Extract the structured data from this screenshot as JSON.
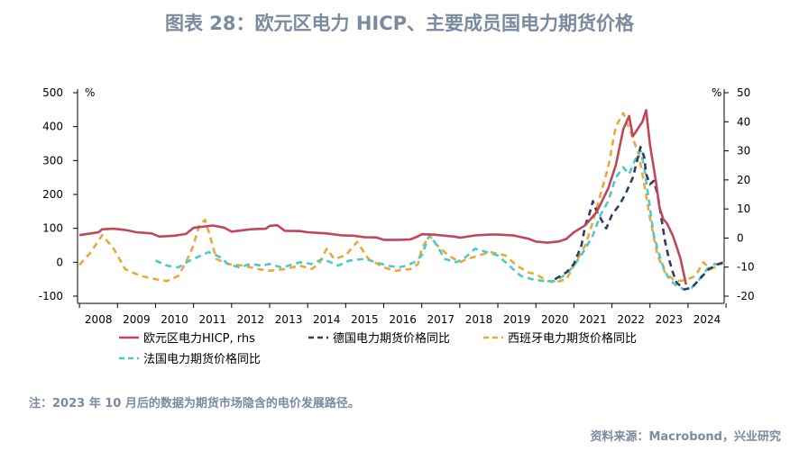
{
  "title": "图表 28：欧元区电力 HICP、主要成员国电力期货价格",
  "note": "注：2023 年 10 月后的数据为期货市场隐含的电价发展路径。",
  "source": "资料来源：Macrobond，兴业研究",
  "chart_data": {
    "type": "line",
    "x_tick_labels": [
      "2008",
      "2009",
      "2010",
      "2011",
      "2012",
      "2013",
      "2014",
      "2015",
      "2016",
      "2017",
      "2018",
      "2019",
      "2020",
      "2021",
      "2022",
      "2023",
      "2024"
    ],
    "xlim": [
      2007.95,
      2024.95
    ],
    "left_axis": {
      "unit": "%",
      "ticks": [
        500,
        400,
        300,
        200,
        100,
        0,
        -100
      ],
      "ylim": [
        -100,
        500
      ]
    },
    "right_axis": {
      "unit": "%",
      "ticks": [
        50,
        40,
        30,
        20,
        10,
        0,
        -10,
        -20
      ],
      "ylim": [
        -20,
        50
      ]
    },
    "series": [
      {
        "name": "欧元区电力HICP, rhs",
        "axis": "right",
        "color": "#c0475a",
        "style": "solid",
        "points": [
          [
            2008.0,
            1.0
          ],
          [
            2008.3,
            1.6
          ],
          [
            2008.5,
            2.0
          ],
          [
            2008.6,
            3.0
          ],
          [
            2008.9,
            3.2
          ],
          [
            2009.2,
            2.8
          ],
          [
            2009.5,
            2.0
          ],
          [
            2009.9,
            1.6
          ],
          [
            2010.1,
            0.5
          ],
          [
            2010.5,
            0.8
          ],
          [
            2010.8,
            1.4
          ],
          [
            2011.0,
            3.5
          ],
          [
            2011.3,
            4.0
          ],
          [
            2011.5,
            4.3
          ],
          [
            2011.8,
            3.6
          ],
          [
            2012.0,
            2.2
          ],
          [
            2012.5,
            3.0
          ],
          [
            2012.9,
            3.2
          ],
          [
            2013.0,
            4.2
          ],
          [
            2013.2,
            4.4
          ],
          [
            2013.4,
            2.5
          ],
          [
            2013.8,
            2.4
          ],
          [
            2014.0,
            2.0
          ],
          [
            2014.5,
            1.6
          ],
          [
            2014.9,
            0.9
          ],
          [
            2015.2,
            0.8
          ],
          [
            2015.5,
            0.3
          ],
          [
            2015.8,
            0.2
          ],
          [
            2016.0,
            -0.6
          ],
          [
            2016.4,
            -0.6
          ],
          [
            2016.7,
            -0.5
          ],
          [
            2016.9,
            0.6
          ],
          [
            2017.0,
            1.3
          ],
          [
            2017.3,
            1.2
          ],
          [
            2017.6,
            0.8
          ],
          [
            2017.9,
            0.4
          ],
          [
            2018.0,
            0.1
          ],
          [
            2018.4,
            0.9
          ],
          [
            2018.8,
            1.2
          ],
          [
            2019.0,
            1.2
          ],
          [
            2019.4,
            0.9
          ],
          [
            2019.8,
            -0.2
          ],
          [
            2020.0,
            -1.2
          ],
          [
            2020.3,
            -1.6
          ],
          [
            2020.6,
            -1.2
          ],
          [
            2020.8,
            -0.3
          ],
          [
            2021.0,
            2.0
          ],
          [
            2021.3,
            4.4
          ],
          [
            2021.6,
            9.0
          ],
          [
            2021.9,
            17.0
          ],
          [
            2022.1,
            25.0
          ],
          [
            2022.3,
            37.5
          ],
          [
            2022.45,
            42.0
          ],
          [
            2022.55,
            35.0
          ],
          [
            2022.7,
            38.0
          ],
          [
            2022.8,
            40.0
          ],
          [
            2022.9,
            44.0
          ],
          [
            2023.0,
            32.0
          ],
          [
            2023.15,
            20.0
          ],
          [
            2023.25,
            10.5
          ],
          [
            2023.35,
            6.5
          ],
          [
            2023.45,
            5.0
          ],
          [
            2023.6,
            0.8
          ],
          [
            2023.7,
            -3.0
          ],
          [
            2023.8,
            -7.0
          ],
          [
            2023.9,
            -13.0
          ],
          [
            2023.95,
            -16.0
          ]
        ]
      },
      {
        "name": "德国电力期货价格同比",
        "axis": "left",
        "color": "#2e3f5c",
        "style": "dash",
        "points": [
          [
            2020.5,
            -50
          ],
          [
            2020.8,
            -30
          ],
          [
            2021.0,
            -5
          ],
          [
            2021.2,
            50
          ],
          [
            2021.3,
            110
          ],
          [
            2021.4,
            140
          ],
          [
            2021.5,
            180
          ],
          [
            2021.6,
            150
          ],
          [
            2021.75,
            120
          ],
          [
            2021.85,
            100
          ],
          [
            2022.0,
            140
          ],
          [
            2022.2,
            170
          ],
          [
            2022.35,
            200
          ],
          [
            2022.55,
            250
          ],
          [
            2022.75,
            340
          ],
          [
            2022.85,
            310
          ],
          [
            2022.9,
            260
          ],
          [
            2023.0,
            230
          ],
          [
            2023.1,
            240
          ],
          [
            2023.2,
            200
          ],
          [
            2023.3,
            130
          ],
          [
            2023.4,
            60
          ],
          [
            2023.5,
            10
          ],
          [
            2023.6,
            -30
          ],
          [
            2023.7,
            -60
          ],
          [
            2023.8,
            -70
          ],
          [
            2023.9,
            -80
          ],
          [
            2024.1,
            -75
          ],
          [
            2024.3,
            -50
          ],
          [
            2024.55,
            -20
          ],
          [
            2024.8,
            -5
          ],
          [
            2024.95,
            0
          ]
        ]
      },
      {
        "name": "西班牙电力期货价格同比",
        "axis": "left",
        "color": "#e8a93a",
        "style": "dash",
        "points": [
          [
            2008.0,
            -8
          ],
          [
            2008.3,
            30
          ],
          [
            2008.6,
            80
          ],
          [
            2008.9,
            40
          ],
          [
            2009.2,
            -20
          ],
          [
            2009.6,
            -40
          ],
          [
            2010.0,
            -50
          ],
          [
            2010.3,
            -55
          ],
          [
            2010.6,
            -40
          ],
          [
            2010.8,
            0
          ],
          [
            2011.0,
            50
          ],
          [
            2011.15,
            110
          ],
          [
            2011.3,
            125
          ],
          [
            2011.4,
            90
          ],
          [
            2011.6,
            10
          ],
          [
            2011.9,
            -5
          ],
          [
            2012.3,
            -10
          ],
          [
            2012.7,
            -20
          ],
          [
            2013.0,
            -25
          ],
          [
            2013.4,
            -20
          ],
          [
            2013.8,
            -10
          ],
          [
            2014.1,
            -20
          ],
          [
            2014.3,
            -5
          ],
          [
            2014.5,
            40
          ],
          [
            2014.7,
            10
          ],
          [
            2015.0,
            20
          ],
          [
            2015.3,
            60
          ],
          [
            2015.6,
            10
          ],
          [
            2016.0,
            -15
          ],
          [
            2016.3,
            -25
          ],
          [
            2016.7,
            -20
          ],
          [
            2016.9,
            -5
          ],
          [
            2017.0,
            40
          ],
          [
            2017.2,
            80
          ],
          [
            2017.4,
            50
          ],
          [
            2017.7,
            20
          ],
          [
            2018.0,
            0
          ],
          [
            2018.2,
            10
          ],
          [
            2018.5,
            20
          ],
          [
            2018.8,
            30
          ],
          [
            2019.2,
            20
          ],
          [
            2019.5,
            -10
          ],
          [
            2019.8,
            -30
          ],
          [
            2020.0,
            -35
          ],
          [
            2020.3,
            -55
          ],
          [
            2020.5,
            -60
          ],
          [
            2020.8,
            -50
          ],
          [
            2021.0,
            -10
          ],
          [
            2021.3,
            50
          ],
          [
            2021.5,
            120
          ],
          [
            2021.7,
            200
          ],
          [
            2021.9,
            280
          ],
          [
            2022.1,
            400
          ],
          [
            2022.3,
            440
          ],
          [
            2022.5,
            380
          ],
          [
            2022.7,
            320
          ],
          [
            2022.85,
            230
          ],
          [
            2023.0,
            130
          ],
          [
            2023.2,
            20
          ],
          [
            2023.4,
            -30
          ],
          [
            2023.6,
            -50
          ],
          [
            2023.8,
            -55
          ],
          [
            2024.0,
            -50
          ],
          [
            2024.2,
            -40
          ],
          [
            2024.4,
            0
          ],
          [
            2024.6,
            -20
          ],
          [
            2024.8,
            -10
          ],
          [
            2024.95,
            0
          ]
        ]
      },
      {
        "name": "法国电力期货价格同比",
        "axis": "left",
        "color": "#4fc8cc",
        "style": "dash",
        "points": [
          [
            2010.0,
            5
          ],
          [
            2010.3,
            -10
          ],
          [
            2010.6,
            -15
          ],
          [
            2010.9,
            5
          ],
          [
            2011.1,
            15
          ],
          [
            2011.4,
            30
          ],
          [
            2011.7,
            15
          ],
          [
            2011.9,
            -5
          ],
          [
            2012.2,
            -15
          ],
          [
            2012.5,
            -5
          ],
          [
            2012.8,
            -10
          ],
          [
            2013.0,
            -5
          ],
          [
            2013.3,
            -15
          ],
          [
            2013.5,
            -10
          ],
          [
            2013.8,
            0
          ],
          [
            2014.1,
            -5
          ],
          [
            2014.4,
            10
          ],
          [
            2014.8,
            -10
          ],
          [
            2015.1,
            5
          ],
          [
            2015.5,
            10
          ],
          [
            2015.8,
            0
          ],
          [
            2016.1,
            -10
          ],
          [
            2016.4,
            -15
          ],
          [
            2016.6,
            -10
          ],
          [
            2016.8,
            0
          ],
          [
            2017.0,
            20
          ],
          [
            2017.2,
            80
          ],
          [
            2017.4,
            50
          ],
          [
            2017.6,
            10
          ],
          [
            2017.9,
            0
          ],
          [
            2018.1,
            10
          ],
          [
            2018.4,
            40
          ],
          [
            2018.7,
            30
          ],
          [
            2019.0,
            20
          ],
          [
            2019.3,
            -10
          ],
          [
            2019.6,
            -40
          ],
          [
            2019.9,
            -50
          ],
          [
            2020.2,
            -55
          ],
          [
            2020.5,
            -55
          ],
          [
            2020.8,
            -35
          ],
          [
            2021.0,
            -10
          ],
          [
            2021.3,
            40
          ],
          [
            2021.5,
            80
          ],
          [
            2021.7,
            140
          ],
          [
            2021.9,
            180
          ],
          [
            2022.1,
            250
          ],
          [
            2022.3,
            280
          ],
          [
            2022.45,
            260
          ],
          [
            2022.6,
            300
          ],
          [
            2022.75,
            330
          ],
          [
            2022.85,
            280
          ],
          [
            2022.95,
            200
          ],
          [
            2023.1,
            80
          ],
          [
            2023.3,
            0
          ],
          [
            2023.5,
            -50
          ],
          [
            2023.7,
            -70
          ],
          [
            2023.9,
            -80
          ],
          [
            2024.1,
            -75
          ],
          [
            2024.3,
            -50
          ],
          [
            2024.5,
            -20
          ],
          [
            2024.7,
            -5
          ],
          [
            2024.95,
            -10
          ]
        ]
      }
    ],
    "legend": {
      "placement": "bottom",
      "items": [
        "欧元区电力HICP, rhs",
        "德国电力期货价格同比",
        "西班牙电力期货价格同比",
        "法国电力期货价格同比"
      ]
    }
  }
}
